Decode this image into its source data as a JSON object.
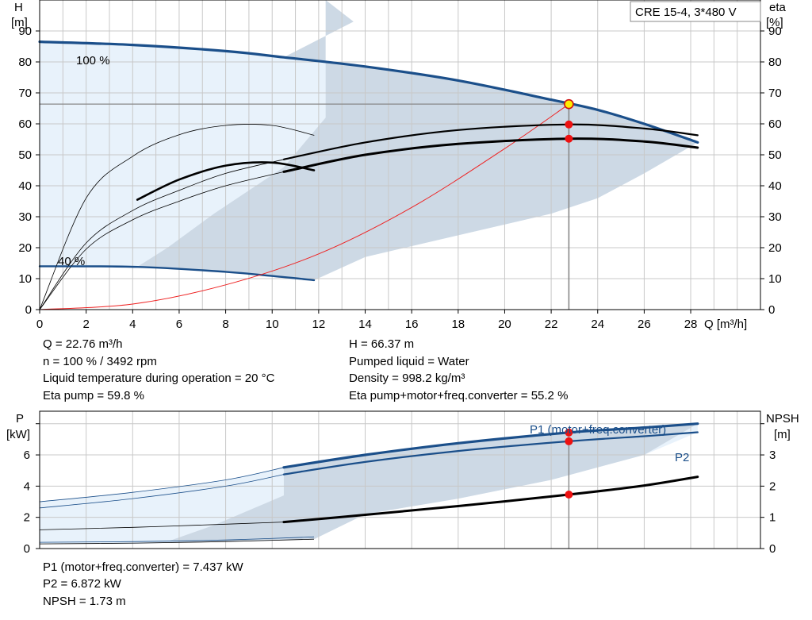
{
  "chart_data": [
    {
      "type": "line",
      "title": "CRE 15-4, 3*480 V",
      "xlabel": "Q [m³/h]",
      "ylabel": "H\n[m]",
      "y2label": "eta\n[%]",
      "xlim": [
        0,
        31
      ],
      "ylim": [
        0,
        100
      ],
      "y2lim": [
        0,
        100
      ],
      "x_ticks": [
        0,
        2,
        4,
        6,
        8,
        10,
        12,
        14,
        16,
        18,
        20,
        22,
        24,
        26,
        28
      ],
      "y_ticks": [
        0,
        10,
        20,
        30,
        40,
        50,
        60,
        70,
        80,
        90
      ],
      "grid": true,
      "annotations": [
        "100 %",
        "40 %"
      ],
      "duty_point": {
        "q": 22.76,
        "h": 66.37,
        "eta_pump": 59.8,
        "eta_total": 55.2
      },
      "series": [
        {
          "kind": "head-100",
          "x": [
            0,
            4,
            8,
            10.5,
            14,
            18,
            22,
            24,
            26,
            28.3
          ],
          "y": [
            86.5,
            85.5,
            83.5,
            81.5,
            78.5,
            74,
            67.8,
            64.5,
            60,
            54
          ]
        },
        {
          "kind": "head-40",
          "x": [
            0,
            4.2,
            8,
            10.5,
            11.8
          ],
          "y": [
            14,
            13.8,
            12.2,
            10.5,
            9.5
          ]
        },
        {
          "kind": "system-curve",
          "x": [
            0,
            4,
            8,
            12,
            16,
            20,
            22.76
          ],
          "y": [
            0,
            1.8,
            8,
            18,
            33,
            52,
            66.37
          ]
        },
        {
          "kind": "eta-pump-100",
          "x": [
            10.5,
            14,
            18,
            22.76,
            26,
            28.3
          ],
          "y": [
            48.5,
            54,
            58,
            59.8,
            58.5,
            56.3
          ]
        },
        {
          "kind": "eta-total-100",
          "x": [
            10.5,
            14,
            18,
            22.76,
            26,
            28.3
          ],
          "y": [
            44.5,
            50,
            53.5,
            55.2,
            54.3,
            52.3
          ]
        },
        {
          "kind": "eta-pump-40",
          "x": [
            0,
            2,
            4,
            6,
            8,
            10,
            11.8
          ],
          "y": [
            0,
            36,
            49.5,
            56.5,
            59.5,
            59.5,
            56.3
          ]
        },
        {
          "kind": "eta-total-40",
          "x": [
            4.2,
            6,
            8,
            10,
            11.8
          ],
          "y": [
            35.5,
            42,
            46.5,
            47.5,
            45
          ]
        },
        {
          "kind": "eta-pump-70",
          "x": [
            0,
            2,
            4,
            6,
            8,
            10.5
          ],
          "y": [
            0,
            21.5,
            32,
            38.5,
            44,
            48.5
          ]
        },
        {
          "kind": "eta-total-70",
          "x": [
            0,
            2,
            4,
            6,
            8,
            10.5
          ],
          "y": [
            0,
            19.5,
            29,
            35,
            40,
            44.5
          ]
        }
      ],
      "upper_envelope": [
        [
          0,
          86.5
        ],
        [
          4,
          85.5
        ],
        [
          8,
          83.5
        ],
        [
          10.5,
          81.5
        ],
        [
          14,
          78.5
        ],
        [
          18,
          74
        ],
        [
          22,
          67.8
        ],
        [
          24,
          64.5
        ],
        [
          26,
          60
        ],
        [
          28.3,
          54
        ]
      ],
      "lower_envelope": [
        [
          28.3,
          54
        ],
        [
          26,
          44
        ],
        [
          24,
          36
        ],
        [
          22,
          31
        ],
        [
          18,
          24
        ],
        [
          14,
          17
        ],
        [
          11.8,
          9.5
        ],
        [
          8,
          12.2
        ],
        [
          4.2,
          13.8
        ],
        [
          0,
          14
        ]
      ],
      "op_envelope": [
        [
          12.3,
          100
        ],
        [
          13.5,
          93
        ],
        [
          10.5,
          81.5
        ],
        [
          14,
          78.5
        ],
        [
          18,
          74
        ],
        [
          22,
          67.8
        ],
        [
          24,
          64.5
        ],
        [
          26,
          60
        ],
        [
          28.3,
          54
        ],
        [
          26,
          44
        ],
        [
          24,
          36
        ],
        [
          22,
          31
        ],
        [
          18,
          24
        ],
        [
          14,
          17
        ],
        [
          11.8,
          9.5
        ],
        [
          8,
          12.2
        ],
        [
          4.2,
          13.8
        ],
        [
          5.5,
          20
        ],
        [
          7.5,
          31
        ],
        [
          10.5,
          46
        ],
        [
          12.3,
          62
        ],
        [
          12.3,
          81.5
        ]
      ]
    },
    {
      "type": "line",
      "ylabel": "P\n[kW]",
      "y2label": "NPSH\n[m]",
      "xlim": [
        0,
        31
      ],
      "ylim": [
        0,
        8.8
      ],
      "y2lim": [
        0,
        4.4
      ],
      "y_ticks": [
        0,
        2,
        4,
        6
      ],
      "y2_ticks": [
        0,
        1,
        2,
        3
      ],
      "grid": true,
      "series": [
        {
          "name": "P1 (motor+freq.converter)",
          "kind": "p1",
          "x": [
            0,
            4,
            8,
            10.5,
            14,
            18,
            22.76,
            26,
            28.3
          ],
          "y": [
            3.0,
            3.6,
            4.4,
            5.2,
            6.0,
            6.75,
            7.437,
            7.75,
            8.0
          ]
        },
        {
          "name": "P2",
          "kind": "p2",
          "x": [
            0,
            4,
            8,
            10.5,
            14,
            18,
            22.76,
            26,
            28.3
          ],
          "y": [
            2.6,
            3.2,
            4.0,
            4.75,
            5.55,
            6.25,
            6.872,
            7.2,
            7.45
          ]
        },
        {
          "kind": "npsh",
          "x": [
            0,
            4,
            8,
            10.5,
            14,
            18,
            22.76,
            26,
            28.3
          ],
          "y": [
            0.6,
            0.68,
            0.78,
            0.85,
            1.08,
            1.36,
            1.73,
            2.02,
            2.3
          ]
        },
        {
          "kind": "p1-40",
          "x": [
            0,
            4.2,
            8,
            11.8
          ],
          "y": [
            0.4,
            0.45,
            0.55,
            0.75
          ]
        },
        {
          "kind": "p2-40",
          "x": [
            0,
            4.2,
            8,
            11.8
          ],
          "y": [
            0.3,
            0.35,
            0.45,
            0.6
          ]
        }
      ],
      "upper_envelope": [
        [
          0,
          3.0
        ],
        [
          4,
          3.6
        ],
        [
          8,
          4.4
        ],
        [
          10.5,
          5.2
        ],
        [
          14,
          6.0
        ],
        [
          18,
          6.75
        ],
        [
          22.76,
          7.437
        ],
        [
          26,
          7.75
        ],
        [
          28.3,
          8.0
        ]
      ],
      "lower_envelope": [
        [
          28.3,
          7.45
        ],
        [
          26,
          6.0
        ],
        [
          22,
          4.4
        ],
        [
          18,
          3.2
        ],
        [
          14,
          2.2
        ],
        [
          11.8,
          0.6
        ],
        [
          8,
          0.45
        ],
        [
          4,
          0.3
        ],
        [
          0,
          0.3
        ]
      ],
      "op_envelope": [
        [
          10.5,
          5.2
        ],
        [
          14,
          6.0
        ],
        [
          18,
          6.75
        ],
        [
          22.76,
          7.437
        ],
        [
          26,
          7.75
        ],
        [
          28.3,
          8.0
        ],
        [
          26,
          6.0
        ],
        [
          22,
          4.4
        ],
        [
          18,
          3.2
        ],
        [
          14,
          2.2
        ],
        [
          11.8,
          0.6
        ],
        [
          8,
          0.45
        ],
        [
          5.5,
          0.45
        ],
        [
          7.5,
          1.5
        ],
        [
          10.5,
          3.4
        ]
      ],
      "duty_point": {
        "q": 22.76,
        "p1": 7.437,
        "p2": 6.872,
        "npsh": 1.73
      }
    }
  ],
  "info_top": {
    "q": "Q = 22.76 m³/h",
    "n": "n = 100 % / 3492 rpm",
    "temp": "Liquid temperature during operation = 20 °C",
    "eta_pump": "Eta pump = 59.8 %",
    "h": "H = 66.37 m",
    "liquid": "Pumped liquid = Water",
    "density": "Density = 998.2 kg/m³",
    "eta_total": "Eta pump+motor+freq.converter = 55.2 %"
  },
  "info_bottom": {
    "p1": "P1 (motor+freq.converter) = 7.437 kW",
    "p2": "P2 = 6.872 kW",
    "npsh": "NPSH = 1.73 m"
  },
  "colors": {
    "head": "#1b4f8a",
    "fill_light": "#e8f2fb",
    "fill_mid": "#cdd9e5",
    "system": "#ee2222",
    "marker": "#ee1111",
    "marker_yellow": "#ffee00",
    "grid": "#c8c8c8"
  }
}
